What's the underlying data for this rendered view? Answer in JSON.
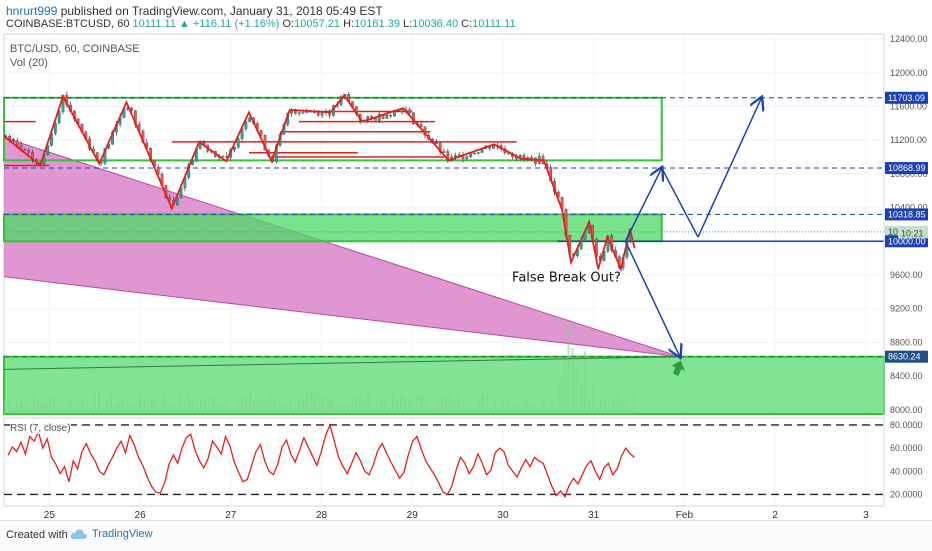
{
  "header": {
    "author": "hnrurt999",
    "published": " published on TradingView.com, January 31, 2018 05:49 EST",
    "symbol": "COINBASE:BTCUSD, 60",
    "last": "10111.11",
    "change": "▲ +116.11 (+1.16%)",
    "o_label": "O:",
    "o": "10057.21",
    "h_label": "H:",
    "h": "10161.39",
    "l_label": "L:",
    "l": "10036.40",
    "c_label": "C:",
    "c": "10111.11"
  },
  "legend": {
    "title": "BTC/USD, 60, COINBASE",
    "volume": "Vol (20)"
  },
  "rsi_label": "RSI (7, close)",
  "footer": {
    "created": "Created with",
    "brand": "TradingView"
  },
  "colors": {
    "candle_up": "#26a69a",
    "candle_down": "#ef5350",
    "zig": "#e3201b",
    "zone": "#4cd964",
    "zone_border": "#35c23c",
    "wedge": "#d36bbd",
    "projection": "#1a3fb8",
    "rsi": "#e3201b",
    "grid": "#f0f3fa"
  },
  "chart_data": {
    "type": "candlestick",
    "title": "BTC/USD, 60, COINBASE",
    "x_ticks": [
      "25",
      "26",
      "27",
      "28",
      "29",
      "30",
      "31",
      "Feb",
      "2",
      "3"
    ],
    "y_ticks": [
      "12400.00",
      "12000.00",
      "11600.00",
      "11200.00",
      "10800.00",
      "10400.00",
      "10000.00",
      "9600.00",
      "9200.00",
      "8800.00",
      "8400.00",
      "8000.00"
    ],
    "ylim": [
      7950,
      12460
    ],
    "price_labels": [
      {
        "text": "11703.09",
        "value": 11703.09
      },
      {
        "text": "10868.99",
        "value": 10868.99
      },
      {
        "text": "10318.85",
        "value": 10318.85
      },
      {
        "text": "10111.11",
        "value": 10111.11
      },
      {
        "text": "10000.00",
        "value": 10000.0
      },
      {
        "text": "8630.24",
        "value": 8630.24
      }
    ],
    "countdown": "10:21",
    "annotation": "False Break Out?",
    "zones": [
      {
        "name": "upper box",
        "x0": 24.5,
        "x1": 31.75,
        "y0": 10960,
        "y1": 11703.09
      },
      {
        "name": "support box",
        "x0": 24.5,
        "x1": 31.75,
        "y0": 10000,
        "y1": 10318.85
      },
      {
        "name": "lower box",
        "x0": 24.5,
        "x1": 34.2,
        "y0": 7950,
        "y1": 8630.24
      }
    ],
    "projection_path": [
      [
        31.35,
        10000
      ],
      [
        31.75,
        10868.99
      ],
      [
        32.15,
        10050
      ],
      [
        32.85,
        11703.09
      ]
    ],
    "projection_down": [
      [
        31.35,
        10000
      ],
      [
        31.95,
        8630.24
      ]
    ],
    "zigzag": [
      [
        24.5,
        11250
      ],
      [
        24.9,
        10900
      ],
      [
        25.15,
        11720
      ],
      [
        25.55,
        10920
      ],
      [
        25.85,
        11650
      ],
      [
        26.35,
        10390
      ],
      [
        26.65,
        11180
      ],
      [
        26.95,
        10950
      ],
      [
        27.2,
        11530
      ],
      [
        27.45,
        10950
      ],
      [
        27.65,
        11560
      ],
      [
        28.1,
        11530
      ],
      [
        28.25,
        11730
      ],
      [
        28.45,
        11420
      ],
      [
        28.9,
        11580
      ],
      [
        29.4,
        10960
      ],
      [
        29.9,
        11150
      ],
      [
        30.2,
        10980
      ],
      [
        30.45,
        10960
      ],
      [
        30.65,
        10380
      ],
      [
        30.75,
        9750
      ],
      [
        30.95,
        10230
      ],
      [
        31.05,
        9670
      ],
      [
        31.15,
        10050
      ],
      [
        31.3,
        9670
      ],
      [
        31.4,
        10150
      ],
      [
        31.45,
        9920
      ]
    ],
    "rsi": {
      "ylim": [
        10,
        86
      ],
      "ticks": [
        "80.0000",
        "60.0000",
        "40.0000",
        "20.0000"
      ],
      "levels": [
        80,
        20
      ],
      "values": [
        54,
        61,
        57,
        65,
        55,
        70,
        66,
        74,
        60,
        68,
        52,
        46,
        38,
        44,
        31,
        49,
        42,
        57,
        64,
        55,
        49,
        40,
        37,
        45,
        52,
        60,
        66,
        56,
        71,
        63,
        52,
        45,
        35,
        27,
        22,
        21,
        30,
        46,
        54,
        47,
        60,
        69,
        72,
        58,
        49,
        43,
        51,
        66,
        61,
        55,
        70,
        62,
        48,
        39,
        31,
        33,
        45,
        57,
        63,
        49,
        40,
        37,
        46,
        61,
        67,
        55,
        48,
        58,
        69,
        61,
        53,
        45,
        57,
        71,
        80,
        66,
        52,
        44,
        38,
        47,
        56,
        49,
        40,
        37,
        46,
        58,
        64,
        56,
        48,
        41,
        34,
        39,
        54,
        66,
        70,
        59,
        49,
        43,
        37,
        30,
        22,
        20,
        27,
        41,
        52,
        47,
        38,
        44,
        55,
        47,
        37,
        41,
        56,
        60,
        57,
        45,
        40,
        35,
        43,
        50,
        44,
        52,
        49,
        47,
        37,
        27,
        19,
        23,
        18,
        28,
        34,
        29,
        37,
        45,
        49,
        40,
        33,
        43,
        47,
        37,
        42,
        53,
        60,
        55,
        52
      ]
    }
  }
}
